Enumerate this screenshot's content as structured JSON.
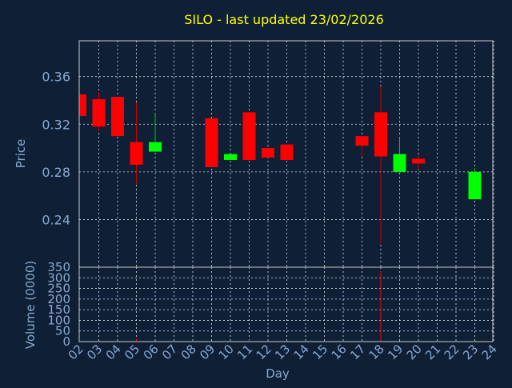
{
  "colors": {
    "background": "#0e1f36",
    "title": "#ffff00",
    "axis_text": "#8aa8d0",
    "frame": "#c8c8c8",
    "grid": "#e6e6e6",
    "up": "#00ff00",
    "down": "#ff0000",
    "wick_down": "#cc0000",
    "wick_up": "#00cc00"
  },
  "chart_data": {
    "type": "candlestick",
    "title": "SILO - last updated 23/02/2026",
    "xlabel": "Day",
    "price_ylabel": "Price",
    "volume_ylabel": "Volume (0000)",
    "x_ticks": [
      "02",
      "03",
      "04",
      "05",
      "06",
      "07",
      "08",
      "09",
      "10",
      "11",
      "12",
      "13",
      "14",
      "15",
      "16",
      "17",
      "18",
      "19",
      "20",
      "21",
      "22",
      "23",
      "24"
    ],
    "price_ticks": [
      "0.24",
      "0.28",
      "0.32",
      "0.36"
    ],
    "price_ylim": [
      0.2,
      0.39
    ],
    "volume_ticks": [
      "0",
      "50",
      "100",
      "150",
      "200",
      "250",
      "300",
      "350"
    ],
    "volume_ylim": [
      0,
      350
    ],
    "grid": true,
    "candles": [
      {
        "day": "02",
        "open": 0.345,
        "high": 0.345,
        "low": 0.327,
        "close": 0.327,
        "volume": 0
      },
      {
        "day": "03",
        "open": 0.341,
        "high": 0.347,
        "low": 0.314,
        "close": 0.318,
        "volume": 3
      },
      {
        "day": "04",
        "open": 0.343,
        "high": 0.343,
        "low": 0.31,
        "close": 0.31,
        "volume": 2
      },
      {
        "day": "05",
        "open": 0.305,
        "high": 0.338,
        "low": 0.27,
        "close": 0.286,
        "volume": 12
      },
      {
        "day": "06",
        "open": 0.297,
        "high": 0.329,
        "low": 0.297,
        "close": 0.305,
        "volume": 5
      },
      {
        "day": "09",
        "open": 0.325,
        "high": 0.325,
        "low": 0.284,
        "close": 0.284,
        "volume": 2
      },
      {
        "day": "10",
        "open": 0.29,
        "high": 0.295,
        "low": 0.29,
        "close": 0.295,
        "volume": 2
      },
      {
        "day": "11",
        "open": 0.33,
        "high": 0.33,
        "low": 0.29,
        "close": 0.29,
        "volume": 8
      },
      {
        "day": "12",
        "open": 0.3,
        "high": 0.3,
        "low": 0.292,
        "close": 0.292,
        "volume": 3
      },
      {
        "day": "13",
        "open": 0.303,
        "high": 0.303,
        "low": 0.29,
        "close": 0.29,
        "volume": 3
      },
      {
        "day": "17",
        "open": 0.31,
        "high": 0.31,
        "low": 0.293,
        "close": 0.302,
        "volume": 2
      },
      {
        "day": "18",
        "open": 0.33,
        "high": 0.352,
        "low": 0.22,
        "close": 0.293,
        "volume": 330
      },
      {
        "day": "19",
        "open": 0.28,
        "high": 0.309,
        "low": 0.28,
        "close": 0.295,
        "volume": 4
      },
      {
        "day": "20",
        "open": 0.291,
        "high": 0.294,
        "low": 0.282,
        "close": 0.287,
        "volume": 2
      },
      {
        "day": "23",
        "open": 0.257,
        "high": 0.283,
        "low": 0.257,
        "close": 0.28,
        "volume": 5
      }
    ]
  }
}
